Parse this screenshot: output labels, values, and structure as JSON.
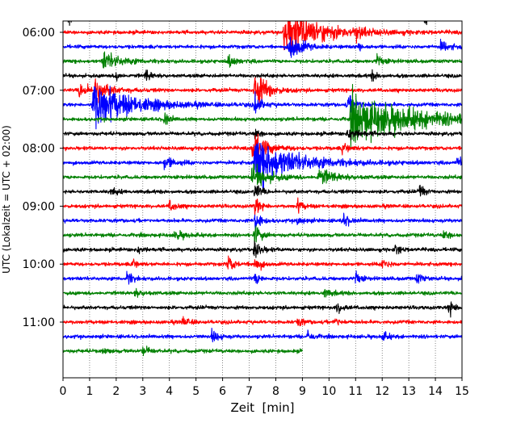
{
  "chart_data": {
    "type": "line",
    "title": "",
    "xlabel": "Zeit  [min]",
    "ylabel": "UTC (Lokalzeit = UTC + 02:00)",
    "xlim": [
      0,
      15
    ],
    "x_ticks": [
      "0",
      "1",
      "2",
      "3",
      "4",
      "5",
      "6",
      "7",
      "8",
      "9",
      "10",
      "11",
      "12",
      "13",
      "14",
      "15"
    ],
    "y_tick_labels": [
      "06:00",
      "07:00",
      "08:00",
      "09:00",
      "10:00",
      "11:00"
    ],
    "grid": "vertical dotted lines at each minute",
    "trace_interval_min": 15,
    "start_time": "05:45",
    "color_cycle": [
      "#000000",
      "#ff0000",
      "#0000ff",
      "#008000"
    ],
    "traces": [
      {
        "start": "05:45",
        "color": "#000000",
        "end_min": 15,
        "events": [
          {
            "t": 0.2,
            "amp": 0.8,
            "dur": 0.15
          },
          {
            "t": 13.6,
            "amp": 0.9,
            "dur": 0.15
          },
          {
            "t": 10.8,
            "amp": 0.4,
            "dur": 0.3
          }
        ]
      },
      {
        "start": "06:00",
        "color": "#ff0000",
        "end_min": 15,
        "events": [
          {
            "t": 8.3,
            "amp": 2.6,
            "dur": 1.3
          },
          {
            "t": 11.0,
            "amp": 0.6,
            "dur": 0.2
          }
        ]
      },
      {
        "start": "06:15",
        "color": "#0000ff",
        "end_min": 15,
        "events": [
          {
            "t": 8.5,
            "amp": 1.7,
            "dur": 0.4
          },
          {
            "t": 11.1,
            "amp": 0.9,
            "dur": 0.1
          },
          {
            "t": 14.2,
            "amp": 0.6,
            "dur": 0.3
          }
        ]
      },
      {
        "start": "06:30",
        "color": "#008000",
        "end_min": 15,
        "events": [
          {
            "t": 1.5,
            "amp": 1.0,
            "dur": 0.6
          },
          {
            "t": 6.2,
            "amp": 0.6,
            "dur": 0.3
          },
          {
            "t": 11.8,
            "amp": 0.8,
            "dur": 0.2
          }
        ]
      },
      {
        "start": "06:45",
        "color": "#000000",
        "end_min": 15,
        "events": [
          {
            "t": 2.0,
            "amp": 0.9,
            "dur": 0.1
          },
          {
            "t": 3.1,
            "amp": 0.7,
            "dur": 0.2
          },
          {
            "t": 11.6,
            "amp": 0.5,
            "dur": 0.2
          }
        ]
      },
      {
        "start": "07:00",
        "color": "#ff0000",
        "end_min": 15,
        "events": [
          {
            "t": 0.6,
            "amp": 0.8,
            "dur": 0.4
          },
          {
            "t": 1.2,
            "amp": 1.0,
            "dur": 0.5
          },
          {
            "t": 7.2,
            "amp": 2.4,
            "dur": 0.4
          }
        ]
      },
      {
        "start": "07:15",
        "color": "#0000ff",
        "end_min": 15,
        "events": [
          {
            "t": 1.1,
            "amp": 2.6,
            "dur": 1.3
          },
          {
            "t": 7.2,
            "amp": 1.3,
            "dur": 0.2
          },
          {
            "t": 10.7,
            "amp": 0.8,
            "dur": 0.4
          }
        ]
      },
      {
        "start": "07:30",
        "color": "#008000",
        "end_min": 15,
        "events": [
          {
            "t": 3.8,
            "amp": 1.0,
            "dur": 0.15
          },
          {
            "t": 10.8,
            "amp": 2.5,
            "dur": 2.4
          }
        ]
      },
      {
        "start": "07:45",
        "color": "#000000",
        "end_min": 15,
        "events": [
          {
            "t": 10.7,
            "amp": 0.7,
            "dur": 0.4
          },
          {
            "t": 7.2,
            "amp": 0.5,
            "dur": 0.2
          }
        ]
      },
      {
        "start": "08:00",
        "color": "#ff0000",
        "end_min": 15,
        "events": [
          {
            "t": 7.1,
            "amp": 1.6,
            "dur": 0.5
          },
          {
            "t": 10.5,
            "amp": 0.5,
            "dur": 0.3
          }
        ]
      },
      {
        "start": "08:15",
        "color": "#0000ff",
        "end_min": 15,
        "events": [
          {
            "t": 7.2,
            "amp": 2.6,
            "dur": 1.4
          },
          {
            "t": 3.8,
            "amp": 0.6,
            "dur": 0.4
          },
          {
            "t": 14.8,
            "amp": 0.6,
            "dur": 0.3
          }
        ]
      },
      {
        "start": "08:30",
        "color": "#008000",
        "end_min": 15,
        "events": [
          {
            "t": 7.1,
            "amp": 1.2,
            "dur": 0.6
          },
          {
            "t": 9.6,
            "amp": 0.9,
            "dur": 0.6
          }
        ]
      },
      {
        "start": "08:45",
        "color": "#000000",
        "end_min": 15,
        "events": [
          {
            "t": 7.2,
            "amp": 1.0,
            "dur": 0.2
          },
          {
            "t": 13.4,
            "amp": 0.9,
            "dur": 0.15
          },
          {
            "t": 1.8,
            "amp": 0.4,
            "dur": 0.2
          }
        ]
      },
      {
        "start": "09:00",
        "color": "#ff0000",
        "end_min": 15,
        "events": [
          {
            "t": 7.2,
            "amp": 1.2,
            "dur": 0.2
          },
          {
            "t": 8.8,
            "amp": 0.7,
            "dur": 0.2
          },
          {
            "t": 4.0,
            "amp": 0.6,
            "dur": 0.2
          }
        ]
      },
      {
        "start": "09:15",
        "color": "#0000ff",
        "end_min": 15,
        "events": [
          {
            "t": 7.2,
            "amp": 1.4,
            "dur": 0.2
          },
          {
            "t": 10.5,
            "amp": 0.9,
            "dur": 0.2
          },
          {
            "t": 8.8,
            "amp": 0.5,
            "dur": 0.2
          }
        ]
      },
      {
        "start": "09:30",
        "color": "#008000",
        "end_min": 15,
        "events": [
          {
            "t": 7.2,
            "amp": 1.2,
            "dur": 0.2
          },
          {
            "t": 4.2,
            "amp": 0.5,
            "dur": 0.3
          },
          {
            "t": 14.3,
            "amp": 0.4,
            "dur": 0.3
          }
        ]
      },
      {
        "start": "09:45",
        "color": "#000000",
        "end_min": 15,
        "events": [
          {
            "t": 7.2,
            "amp": 1.3,
            "dur": 0.2
          },
          {
            "t": 12.5,
            "amp": 0.7,
            "dur": 0.15
          },
          {
            "t": 2.8,
            "amp": 0.4,
            "dur": 0.2
          }
        ]
      },
      {
        "start": "10:00",
        "color": "#ff0000",
        "end_min": 15,
        "events": [
          {
            "t": 6.2,
            "amp": 1.0,
            "dur": 0.2
          },
          {
            "t": 7.2,
            "amp": 0.9,
            "dur": 0.2
          },
          {
            "t": 12.0,
            "amp": 0.7,
            "dur": 0.2
          },
          {
            "t": 2.6,
            "amp": 0.5,
            "dur": 0.2
          }
        ]
      },
      {
        "start": "10:15",
        "color": "#0000ff",
        "end_min": 15,
        "events": [
          {
            "t": 2.4,
            "amp": 0.8,
            "dur": 0.2
          },
          {
            "t": 11.0,
            "amp": 1.0,
            "dur": 0.15
          },
          {
            "t": 13.3,
            "amp": 0.6,
            "dur": 0.2
          },
          {
            "t": 7.2,
            "amp": 0.7,
            "dur": 0.2
          }
        ]
      },
      {
        "start": "10:30",
        "color": "#008000",
        "end_min": 15,
        "events": [
          {
            "t": 2.7,
            "amp": 0.4,
            "dur": 0.3
          },
          {
            "t": 9.8,
            "amp": 0.4,
            "dur": 0.3
          }
        ]
      },
      {
        "start": "10:45",
        "color": "#000000",
        "end_min": 15,
        "events": [
          {
            "t": 10.3,
            "amp": 0.6,
            "dur": 0.2
          },
          {
            "t": 14.5,
            "amp": 1.0,
            "dur": 0.2
          }
        ]
      },
      {
        "start": "11:00",
        "color": "#ff0000",
        "end_min": 15,
        "events": [
          {
            "t": 4.5,
            "amp": 0.6,
            "dur": 0.2
          },
          {
            "t": 8.8,
            "amp": 0.5,
            "dur": 0.2
          },
          {
            "t": 10.2,
            "amp": 0.5,
            "dur": 0.2
          }
        ]
      },
      {
        "start": "11:15",
        "color": "#0000ff",
        "end_min": 15,
        "events": [
          {
            "t": 5.6,
            "amp": 0.8,
            "dur": 0.2
          },
          {
            "t": 9.2,
            "amp": 0.8,
            "dur": 0.15
          },
          {
            "t": 12.0,
            "amp": 0.5,
            "dur": 0.2
          }
        ]
      },
      {
        "start": "11:30",
        "color": "#008000",
        "end_min": 9,
        "events": [
          {
            "t": 3.0,
            "amp": 0.6,
            "dur": 0.2
          },
          {
            "t": 1.5,
            "amp": 0.3,
            "dur": 0.2
          }
        ]
      }
    ]
  }
}
